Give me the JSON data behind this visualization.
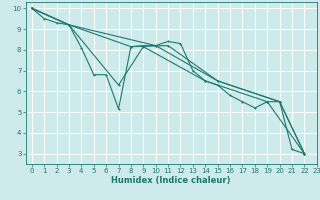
{
  "background_color": "#ceeaea",
  "grid_color": "#ffffff",
  "line_color": "#1a7a6e",
  "xlabel": "Humidex (Indice chaleur)",
  "xlim": [
    -0.5,
    23
  ],
  "ylim": [
    2.5,
    10.3
  ],
  "yticks": [
    3,
    4,
    5,
    6,
    7,
    8,
    9,
    10
  ],
  "xticks": [
    0,
    1,
    2,
    3,
    4,
    5,
    6,
    7,
    8,
    9,
    10,
    11,
    12,
    13,
    14,
    15,
    16,
    17,
    18,
    19,
    20,
    21,
    22,
    23
  ],
  "line1_x": [
    0,
    1,
    2,
    3,
    4,
    5,
    6,
    7,
    8,
    9,
    10,
    11,
    12,
    13,
    14,
    15,
    16,
    17,
    18,
    19,
    20,
    21,
    22
  ],
  "line1_y": [
    10.0,
    9.5,
    9.3,
    9.2,
    8.1,
    6.8,
    6.8,
    5.15,
    8.15,
    8.2,
    8.2,
    8.4,
    8.3,
    7.0,
    6.5,
    6.3,
    5.8,
    5.5,
    5.2,
    5.5,
    5.5,
    3.2,
    3.0
  ],
  "line2_x": [
    0,
    3,
    7,
    9,
    14,
    19,
    22
  ],
  "line2_y": [
    10.0,
    9.2,
    6.3,
    8.15,
    6.5,
    5.5,
    3.0
  ],
  "line3_x": [
    0,
    3,
    8,
    11,
    15,
    20,
    22
  ],
  "line3_y": [
    10.0,
    9.2,
    8.15,
    8.2,
    6.5,
    5.5,
    3.0
  ],
  "line4_x": [
    0,
    3,
    10,
    15,
    20,
    22
  ],
  "line4_y": [
    10.0,
    9.2,
    8.2,
    6.5,
    5.5,
    3.0
  ]
}
